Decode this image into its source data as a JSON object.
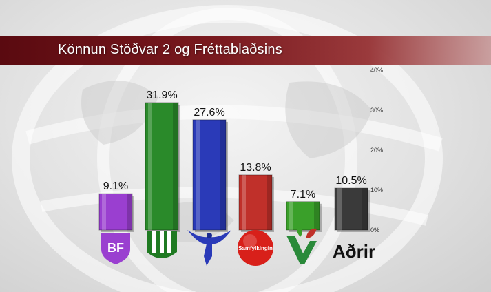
{
  "title": "Könnun Stöðvar 2 og Fréttablaðsins",
  "colors": {
    "title_bar": "#6e1218",
    "bf": "#9a3fd0",
    "b": "#2a8a2a",
    "d": "#2a3ab8",
    "s": "#c0302a",
    "v": "#3aa02a",
    "other": "#3a3a3a"
  },
  "chart_data": {
    "type": "bar",
    "categories": [
      "BF",
      "B",
      "D",
      "S",
      "V",
      "Aðrir"
    ],
    "values": [
      9.1,
      31.9,
      27.6,
      13.8,
      7.1,
      10.5
    ],
    "value_labels": [
      "9.1%",
      "31.9%",
      "27.6%",
      "13.8%",
      "7.1%",
      "10.5%"
    ],
    "category_labels": [
      "BF",
      "",
      "",
      "Samfylkingin",
      "",
      "Aðrir"
    ],
    "category_icons": [
      "bf-shield-logo",
      "framsokn-wheat-logo",
      "falcon-logo",
      "samfylkingin-circle-logo",
      "v-leaf-logo",
      ""
    ],
    "ylim": [
      0,
      40
    ],
    "yticks": [
      0,
      10,
      20,
      30,
      40
    ],
    "ytick_labels": [
      "0%",
      "10%",
      "20%",
      "30%",
      "40%"
    ],
    "series_colors": [
      "#9a3fd0",
      "#2a8a2a",
      "#2a3ab8",
      "#c0302a",
      "#3aa02a",
      "#3a3a3a"
    ],
    "grid": false,
    "legend": "none"
  }
}
